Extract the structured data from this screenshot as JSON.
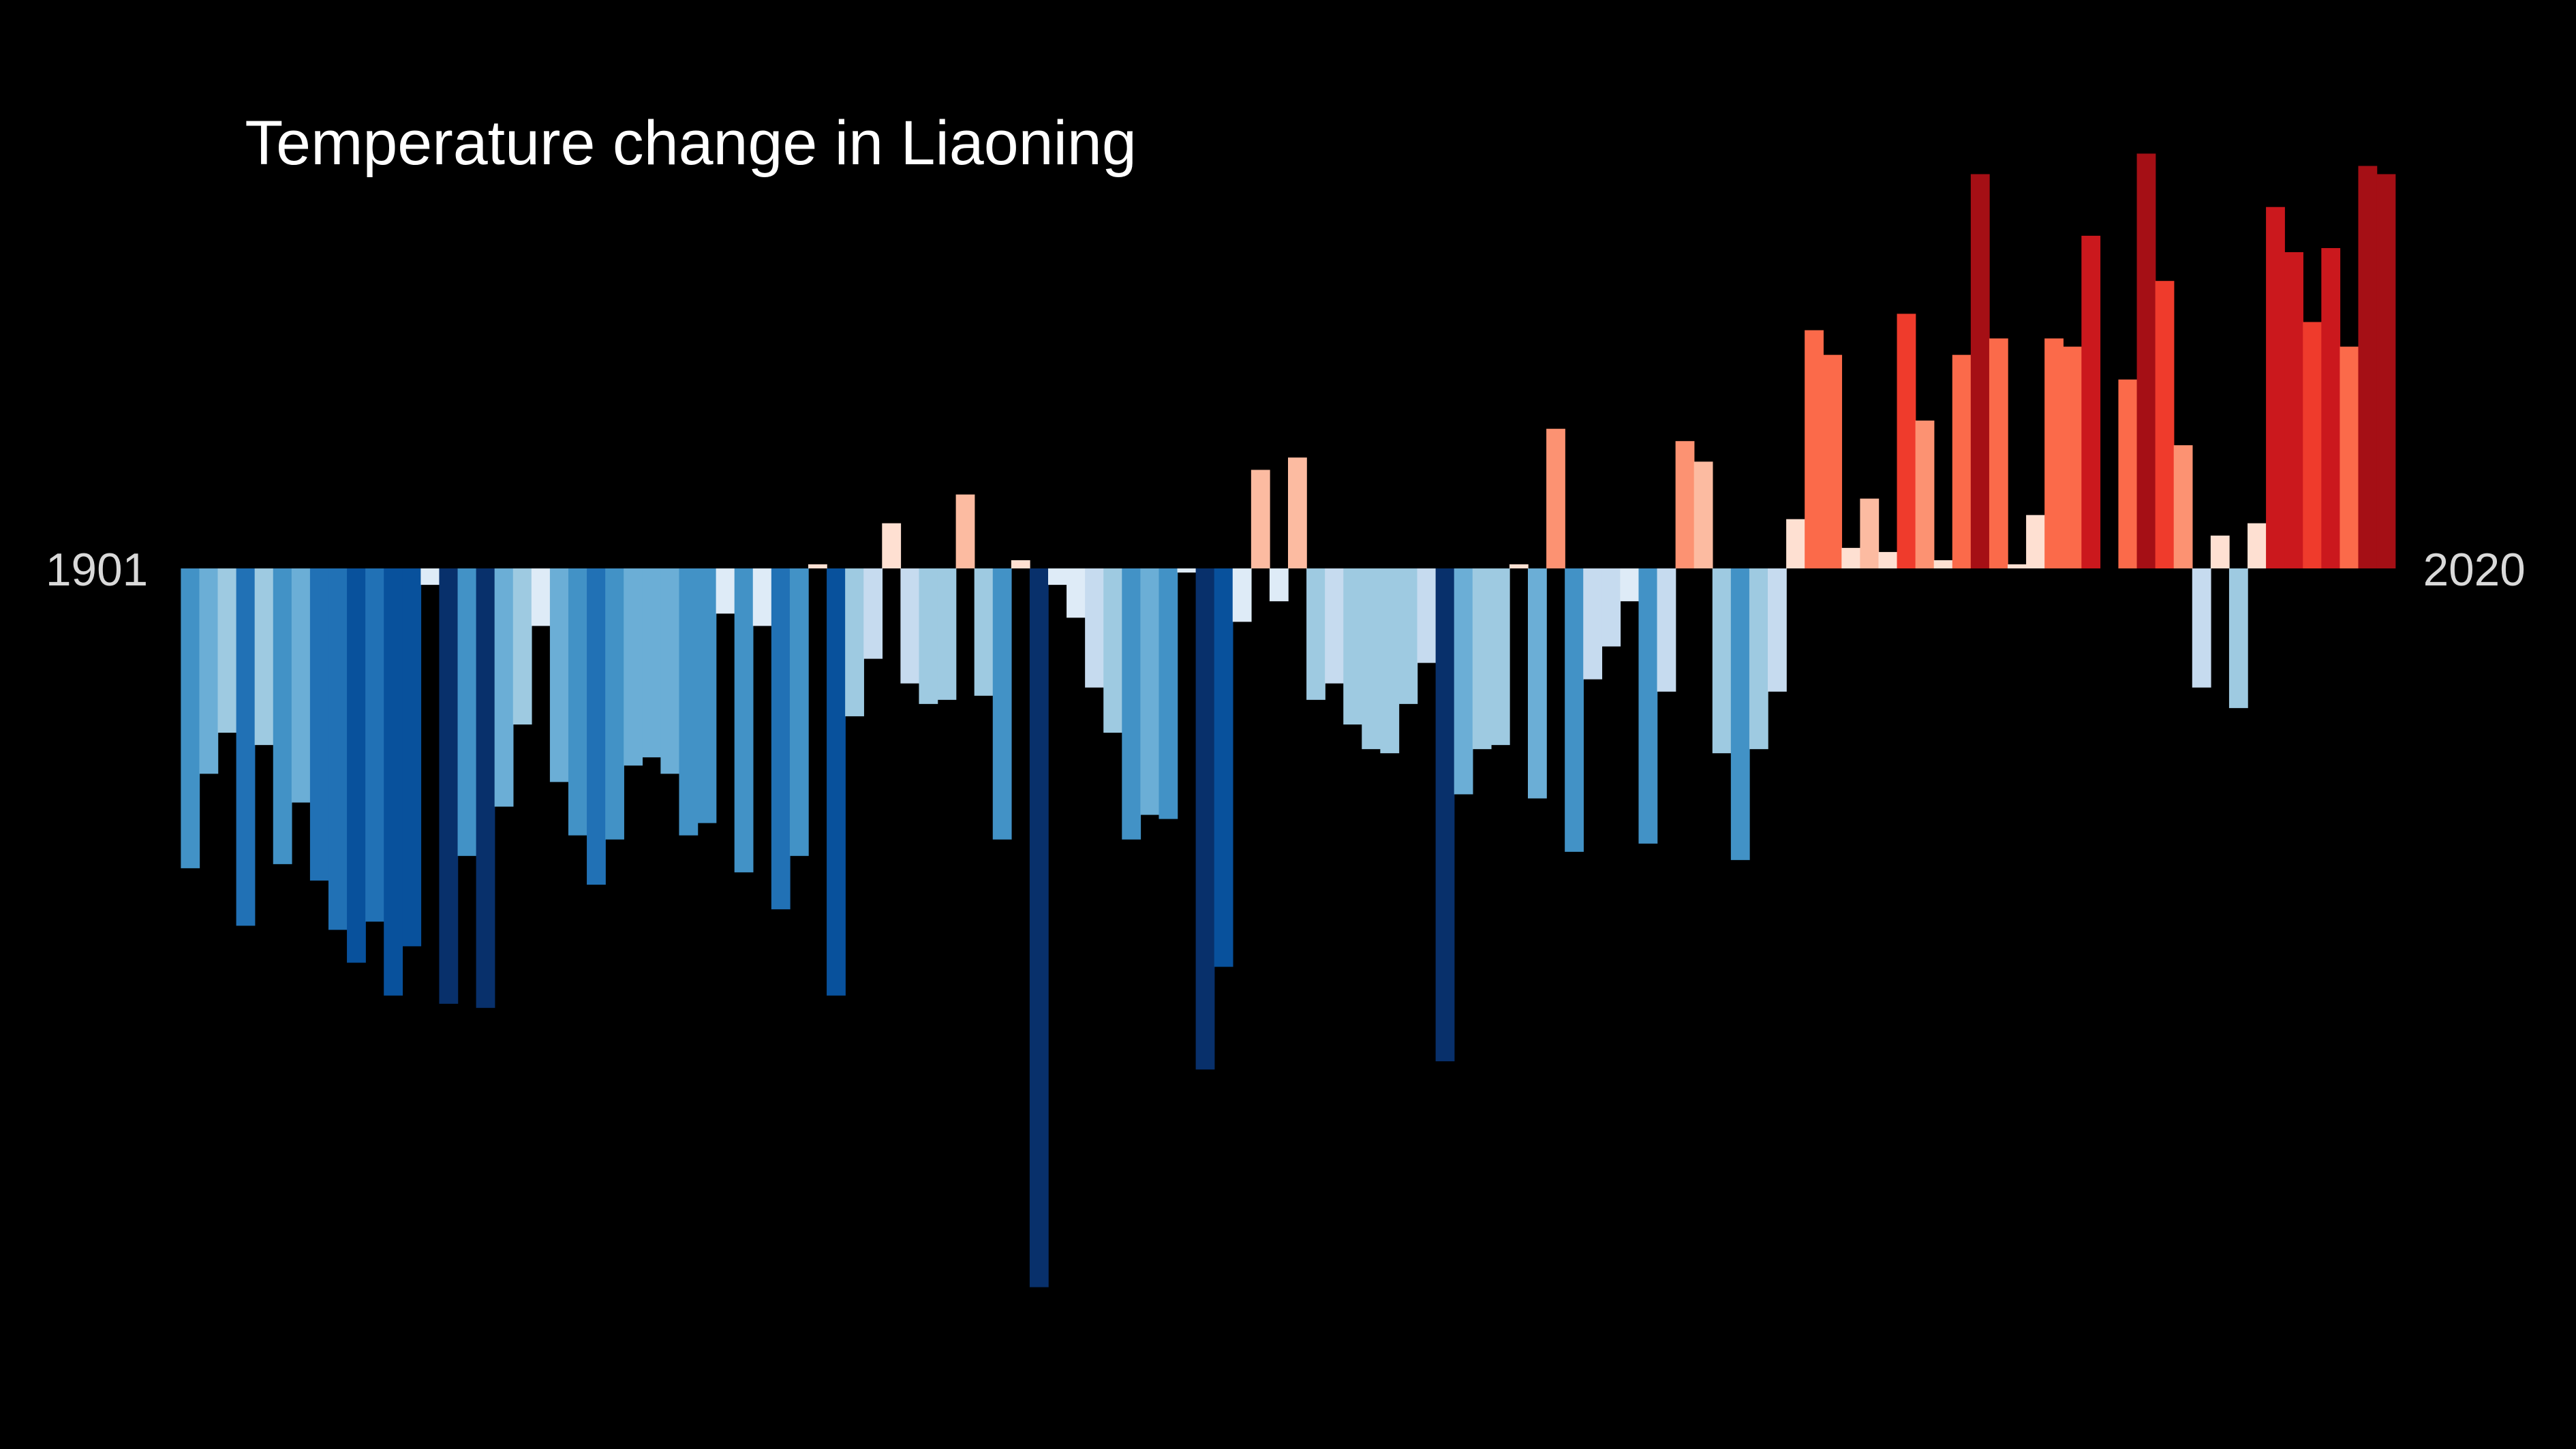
{
  "chart_data": {
    "type": "bar",
    "title": "Temperature change in Liaoning",
    "categories": [
      "1901",
      null,
      null,
      null,
      null,
      null,
      null,
      null,
      null,
      null,
      null,
      null,
      null,
      null,
      null,
      null,
      null,
      null,
      null,
      null,
      null,
      null,
      null,
      null,
      null,
      null,
      null,
      null,
      null,
      null,
      null,
      null,
      null,
      null,
      null,
      null,
      null,
      null,
      null,
      null,
      null,
      null,
      null,
      null,
      null,
      null,
      null,
      null,
      null,
      null,
      null,
      null,
      null,
      null,
      null,
      null,
      null,
      null,
      null,
      null,
      null,
      null,
      null,
      null,
      null,
      null,
      null,
      null,
      null,
      null,
      null,
      null,
      null,
      null,
      null,
      null,
      null,
      null,
      null,
      null,
      null,
      null,
      null,
      null,
      null,
      null,
      null,
      null,
      null,
      null,
      null,
      null,
      null,
      null,
      null,
      null,
      null,
      null,
      null,
      null,
      null,
      null,
      null,
      null,
      null,
      null,
      null,
      null,
      null,
      null,
      null,
      null,
      null,
      null,
      null,
      null,
      null,
      null,
      null,
      "2020"
    ],
    "values": [
      -0.73,
      -0.5,
      -0.4,
      -0.87,
      -0.43,
      -0.72,
      -0.57,
      -0.76,
      -0.88,
      -0.96,
      -0.86,
      -1.04,
      -0.92,
      -0.04,
      -1.06,
      -0.7,
      -1.07,
      -0.58,
      -0.38,
      -0.14,
      -0.52,
      -0.65,
      -0.77,
      -0.66,
      -0.48,
      -0.46,
      -0.5,
      -0.65,
      -0.62,
      -0.11,
      -0.74,
      -0.14,
      -0.83,
      -0.7,
      0.01,
      -1.04,
      -0.36,
      -0.22,
      0.11,
      -0.28,
      -0.33,
      -0.32,
      0.18,
      -0.31,
      -0.66,
      0.02,
      -1.75,
      -0.04,
      -0.12,
      -0.29,
      -0.4,
      -0.66,
      -0.6,
      -0.61,
      -0.01,
      -1.22,
      -0.97,
      -0.13,
      0.24,
      -0.08,
      0.27,
      -0.32,
      -0.28,
      -0.38,
      -0.44,
      -0.45,
      -0.33,
      -0.23,
      -1.2,
      -0.55,
      -0.44,
      -0.43,
      0.01,
      -0.56,
      0.34,
      -0.69,
      -0.27,
      -0.19,
      -0.08,
      -0.67,
      -0.3,
      0.31,
      0.26,
      -0.45,
      -0.71,
      -0.44,
      -0.3,
      0.12,
      0.58,
      0.52,
      0.05,
      0.17,
      0.04,
      0.62,
      0.36,
      0.02,
      0.52,
      0.96,
      0.56,
      0.01,
      0.13,
      0.56,
      0.54,
      0.81,
      0,
      0.46,
      1.01,
      0.7,
      0.3,
      -0.29,
      0.08,
      -0.34,
      0.11,
      0.88,
      0.77,
      0.6,
      0.78,
      0.54,
      0.98,
      0.96
    ],
    "colors": [
      "#08306b",
      "#08519c",
      "#2171b5",
      "#4292c6",
      "#6baed6",
      "#9ecae1",
      "#c6dbef",
      "#deebf7",
      "#fee0d2",
      "#fcbba1",
      "#fc9272",
      "#fb6a4a",
      "#ef3b2c",
      "#cb181d",
      "#a50f15",
      "#67000d"
    ]
  }
}
